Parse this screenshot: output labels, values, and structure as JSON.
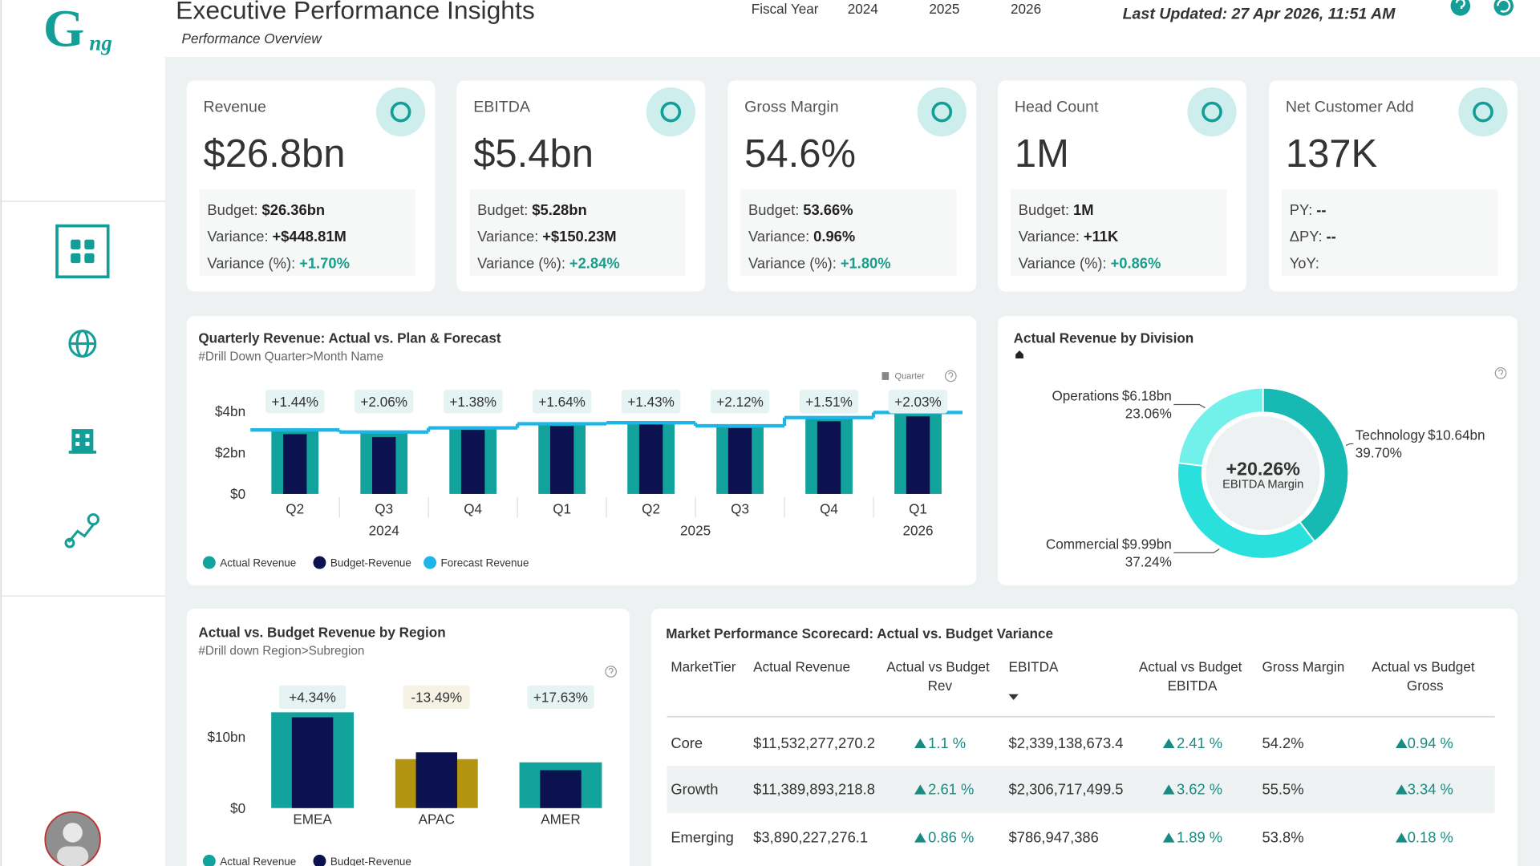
{
  "header": {
    "logo": [
      "G",
      "ng"
    ],
    "title": "Executive Performance Insights",
    "subtitle": "Performance Overview",
    "fiscal_year_label": "Fiscal Year",
    "fiscal_years": [
      "2024",
      "2025",
      "2026"
    ],
    "last_updated": "Last Updated: 27 Apr 2026, 11:51 AM"
  },
  "kpis": [
    {
      "title": "Revenue",
      "value": "$26.8bn",
      "details": [
        {
          "label": "Budget:",
          "value": "$26.36bn"
        },
        {
          "label": "Variance:",
          "value": "+$448.81M"
        },
        {
          "label": "Variance (%):",
          "value": "+1.70%"
        }
      ]
    },
    {
      "title": "EBITDA",
      "value": "$5.4bn",
      "details": [
        {
          "label": "Budget:",
          "value": "$5.28bn"
        },
        {
          "label": "Variance:",
          "value": "+$150.23M"
        },
        {
          "label": "Variance (%):",
          "value": "+2.84%"
        }
      ]
    },
    {
      "title": "Gross Margin",
      "value": "54.6%",
      "details": [
        {
          "label": "Budget:",
          "value": "53.66%"
        },
        {
          "label": "Variance:",
          "value": "0.96%"
        },
        {
          "label": "Variance (%):",
          "value": "+1.80%"
        }
      ]
    },
    {
      "title": "Head Count",
      "value": "1M",
      "details": [
        {
          "label": "Budget:",
          "value": "1M"
        },
        {
          "label": "Variance:",
          "value": "+11K"
        },
        {
          "label": "Variance (%):",
          "value": "+0.86%"
        }
      ]
    },
    {
      "title": "Net Customer Add",
      "value": "137K",
      "details": [
        {
          "label": "PY:",
          "value": "--"
        },
        {
          "label": "ΔPY:",
          "value": "--"
        },
        {
          "label": "YoY:"
        }
      ]
    }
  ],
  "chart_data": [
    {
      "type": "bar",
      "title": "Quarterly Revenue: Actual vs. Plan & Forecast",
      "subtitle": "#Drill Down Quarter>Month Name",
      "control": "Quarter",
      "groups": [
        {
          "label": "2024",
          "categories": [
            "Q2",
            "Q3",
            "Q4"
          ]
        },
        {
          "label": "2025",
          "categories": [
            "Q1",
            "Q2",
            "Q3",
            "Q4"
          ]
        },
        {
          "label": "2026",
          "categories": [
            "Q1"
          ]
        }
      ],
      "series": [
        {
          "name": "Actual Revenue",
          "color": "#12a39c",
          "values": [
            3.1,
            2.95,
            3.24,
            3.38,
            3.48,
            3.29,
            3.71,
            3.95
          ]
        },
        {
          "name": "Budget-Revenue",
          "color": "#0c1150",
          "values": [
            2.9,
            2.76,
            3.1,
            3.29,
            3.38,
            3.19,
            3.52,
            3.76
          ]
        },
        {
          "name": "Forecast Revenue",
          "color": "#1fb5e6",
          "type": "line",
          "values": [
            3.1,
            3.0,
            3.2,
            3.4,
            3.45,
            3.3,
            3.7,
            3.95
          ]
        }
      ],
      "variance_labels": [
        "+1.44%",
        "+2.06%",
        "+1.38%",
        "+1.64%",
        "+1.43%",
        "+2.12%",
        "+1.51%",
        "+2.03%"
      ],
      "ylim": [
        0,
        5
      ],
      "yticks": [
        {
          "value": 0,
          "label": "$0"
        },
        {
          "value": 2,
          "label": "$2bn"
        },
        {
          "value": 4,
          "label": "$4bn"
        }
      ],
      "grid": false
    },
    {
      "type": "pie",
      "title": "Actual Revenue by Division",
      "center_value": "+20.26%",
      "center_label": "EBITDA Margin",
      "categories": [
        "Technology",
        "Commercial",
        "Operations"
      ],
      "values": [
        39.7,
        37.24,
        23.06
      ],
      "value_labels": [
        "39.70%",
        "37.24%",
        "23.06%"
      ],
      "amount_labels": [
        "$10.64bn",
        "$9.99bn",
        "$6.18bn"
      ],
      "colors": [
        "#17bab2",
        "#2ae0dc",
        "#72f0ea"
      ]
    },
    {
      "type": "bar",
      "title": "Actual vs. Budget Revenue by Region",
      "subtitle": "#Drill down Region>Subregion",
      "categories": [
        "EMEA",
        "APAC",
        "AMER"
      ],
      "series": [
        {
          "name": "Actual Revenue",
          "color": "#12a39c",
          "colors": [
            "#12a39c",
            "#b39410",
            "#12a39c"
          ],
          "values": [
            13.4,
            6.85,
            6.4
          ]
        },
        {
          "name": "Budget-Revenue",
          "color": "#0c1150",
          "values": [
            12.7,
            7.8,
            5.3
          ]
        }
      ],
      "variance_labels": [
        "+4.34%",
        "-13.49%",
        "+17.63%"
      ],
      "ylim": [
        0,
        18
      ],
      "yticks": [
        {
          "value": 0,
          "label": "$0"
        },
        {
          "value": 10,
          "label": "$10bn"
        }
      ],
      "grid": false
    }
  ],
  "table": {
    "title": "Market Performance Scorecard: Actual vs. Budget Variance",
    "columns": [
      "MarketTier",
      "Actual Revenue",
      "Actual vs Budget Rev",
      "EBITDA",
      "Actual vs Budget EBITDA",
      "Gross Margin",
      "Actual vs Budget Gross"
    ],
    "rows": [
      [
        "Core",
        "$11,532,277,270.2",
        "1.1 %",
        "$2,339,138,673.4",
        "2.41 %",
        "54.2%",
        "0.94 %"
      ],
      [
        "Growth",
        "$11,389,893,218.8",
        "2.61 %",
        "$2,306,717,499.5",
        "3.62 %",
        "55.5%",
        "3.34 %"
      ],
      [
        "Emerging",
        "$3,890,227,276.1",
        "0.86 %",
        "$786,947,386",
        "1.89 %",
        "53.8%",
        "0.18 %"
      ]
    ]
  }
}
